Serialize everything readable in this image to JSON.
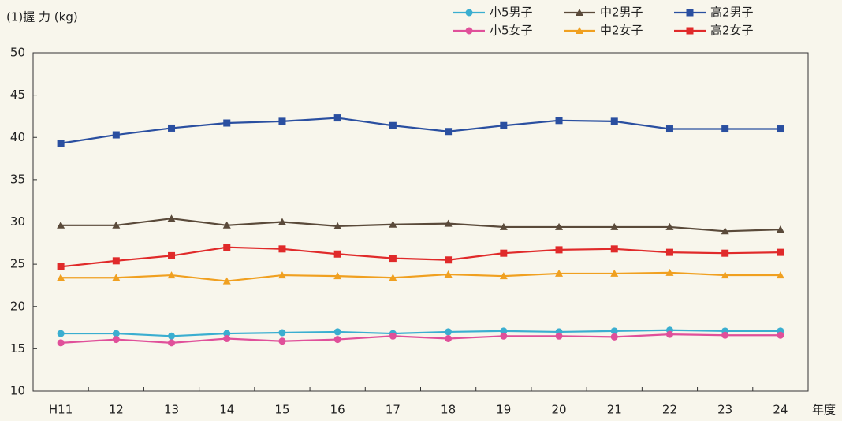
{
  "chart_data": {
    "type": "line",
    "subtitle": "(1)握 力 (kg)",
    "x_label": "年度",
    "categories": [
      "H11",
      "12",
      "13",
      "14",
      "15",
      "16",
      "17",
      "18",
      "19",
      "20",
      "21",
      "22",
      "23",
      "24"
    ],
    "ylim": [
      10,
      50
    ],
    "yticks": [
      10,
      15,
      20,
      25,
      30,
      35,
      40,
      45,
      50
    ],
    "grid": false,
    "legend": "top-right",
    "series": [
      {
        "name": "小5男子",
        "color": "#3aaed0",
        "marker": "circle",
        "values": [
          16.8,
          16.8,
          16.5,
          16.8,
          16.9,
          17.0,
          16.8,
          17.0,
          17.1,
          17.0,
          17.1,
          17.2,
          17.1,
          17.1
        ]
      },
      {
        "name": "中2男子",
        "color": "#5a4a3a",
        "marker": "triangle",
        "values": [
          29.6,
          29.6,
          30.4,
          29.6,
          30.0,
          29.5,
          29.7,
          29.8,
          29.4,
          29.4,
          29.4,
          29.4,
          28.9,
          29.1
        ]
      },
      {
        "name": "高2男子",
        "color": "#2a4fa0",
        "marker": "square",
        "values": [
          39.3,
          40.3,
          41.1,
          41.7,
          41.9,
          42.3,
          41.4,
          40.7,
          41.4,
          42.0,
          41.9,
          41.0,
          41.0,
          41.0
        ]
      },
      {
        "name": "小5女子",
        "color": "#e0509a",
        "marker": "circle",
        "values": [
          15.7,
          16.1,
          15.7,
          16.2,
          15.9,
          16.1,
          16.5,
          16.2,
          16.5,
          16.5,
          16.4,
          16.7,
          16.6,
          16.6
        ]
      },
      {
        "name": "中2女子",
        "color": "#f0a020",
        "marker": "triangle",
        "values": [
          23.4,
          23.4,
          23.7,
          23.0,
          23.7,
          23.6,
          23.4,
          23.8,
          23.6,
          23.9,
          23.9,
          24.0,
          23.7,
          23.7
        ]
      },
      {
        "name": "高2女子",
        "color": "#e02a2a",
        "marker": "square",
        "values": [
          24.7,
          25.4,
          26.0,
          27.0,
          26.8,
          26.2,
          25.7,
          25.5,
          26.3,
          26.7,
          26.8,
          26.4,
          26.3,
          26.4
        ]
      }
    ]
  }
}
